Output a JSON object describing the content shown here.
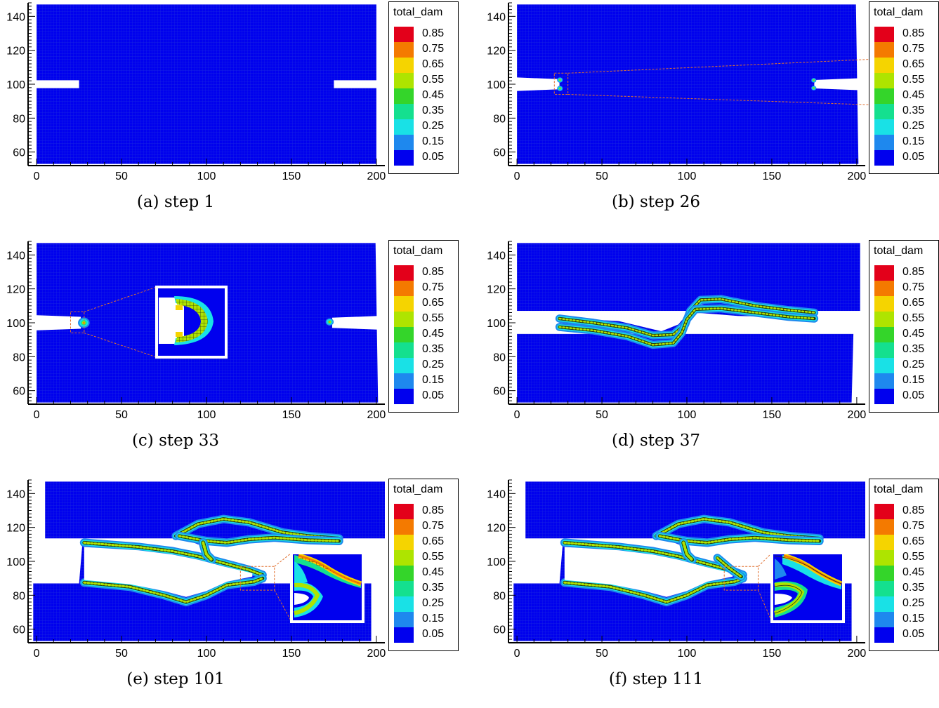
{
  "legend": {
    "title": "total_dam",
    "levels": [
      "0.85",
      "0.75",
      "0.65",
      "0.55",
      "0.45",
      "0.35",
      "0.25",
      "0.15",
      "0.05"
    ],
    "colors": [
      "#e3001a",
      "#f47a00",
      "#f5d400",
      "#aee400",
      "#34d52a",
      "#14e08f",
      "#19e1e6",
      "#1e88ee",
      "#0000ee"
    ]
  },
  "colors": {
    "mesh": "#1a2ae0",
    "crack_edge": "#2b3a10",
    "inset_border": "#ffffff",
    "zoom_line": "#e07030"
  },
  "axes": {
    "xlim": [
      -5,
      205
    ],
    "ylim": [
      52,
      148
    ],
    "xticks": [
      0,
      50,
      100,
      150,
      200
    ],
    "yticks": [
      60,
      80,
      100,
      120,
      140
    ]
  },
  "panels": [
    {
      "caption": "(a)  step 1",
      "step": 1
    },
    {
      "caption": "(b)  step 26",
      "step": 26
    },
    {
      "caption": "(c)  step 33",
      "step": 33
    },
    {
      "caption": "(d)  step 37",
      "step": 37
    },
    {
      "caption": "(e)  step 101",
      "step": 101
    },
    {
      "caption": "(f)  step 111",
      "step": 111
    }
  ],
  "chart_data": {
    "type": "heatmap",
    "variable": "total_dam",
    "xlim": [
      -5,
      205
    ],
    "ylim": [
      52,
      148
    ],
    "xticks": [
      0,
      50,
      100,
      150,
      200
    ],
    "yticks": [
      60,
      80,
      100,
      120,
      140
    ],
    "notch_left": {
      "x": [
        0,
        25
      ],
      "y": [
        98,
        102
      ]
    },
    "notch_right": {
      "x": [
        175,
        200
      ],
      "y": [
        98,
        102
      ]
    },
    "steps": [
      1,
      26,
      33,
      37,
      101,
      111
    ]
  }
}
